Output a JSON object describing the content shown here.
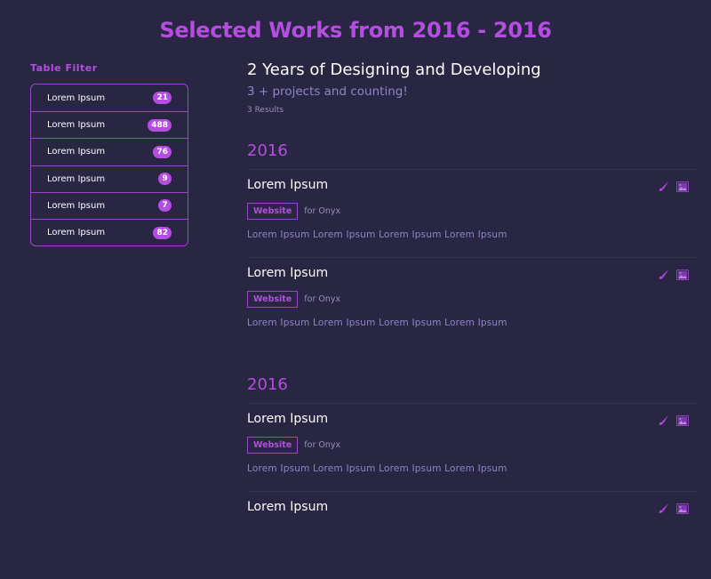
{
  "page_title": "Selected Works from 2016 - 2016",
  "sidebar": {
    "title": "Table Filter",
    "items": [
      {
        "label": "Lorem Ipsum",
        "count": "21"
      },
      {
        "label": "Lorem Ipsum",
        "count": "488"
      },
      {
        "label": "Lorem Ipsum",
        "count": "76"
      },
      {
        "label": "Lorem Ipsum",
        "count": "9"
      },
      {
        "label": "Lorem Ipsum",
        "count": "7"
      },
      {
        "label": "Lorem Ipsum",
        "count": "82"
      }
    ]
  },
  "main": {
    "headline": "2 Years of Designing and Developing",
    "subheadline": "3 + projects and counting!",
    "results": "3 Results",
    "groups": [
      {
        "year": "2016",
        "items": [
          {
            "title": "Lorem Ipsum",
            "tag": "Website",
            "client": "for Onyx",
            "description": "Lorem Ipsum Lorem Ipsum Lorem Ipsum Lorem Ipsum"
          },
          {
            "title": "Lorem Ipsum",
            "tag": "Website",
            "client": "for Onyx",
            "description": "Lorem Ipsum Lorem Ipsum Lorem Ipsum Lorem Ipsum"
          }
        ]
      },
      {
        "year": "2016",
        "items": [
          {
            "title": "Lorem Ipsum",
            "tag": "Website",
            "client": "for Onyx",
            "description": "Lorem Ipsum Lorem Ipsum Lorem Ipsum Lorem Ipsum"
          },
          {
            "title": "Lorem Ipsum",
            "tag": "",
            "client": "",
            "description": ""
          }
        ]
      }
    ]
  },
  "icons": [
    "paintbrush-icon",
    "image-icon"
  ],
  "colors": {
    "background": "#282643",
    "accent": "#b54ee0",
    "muted": "#8f86c4"
  }
}
